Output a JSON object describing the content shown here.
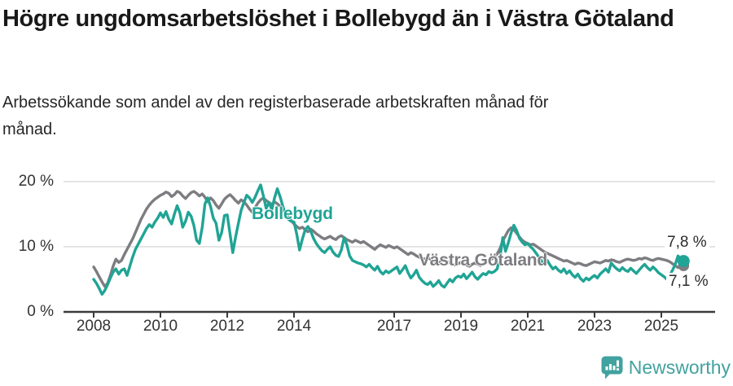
{
  "title": "Högre ungdomsarbetslöshet i Bollebygd än i Västra Götaland",
  "subtitle": "Arbetssökande som andel av den registerbaserade arbetskraften månad för månad.",
  "footer": {
    "brand": "Newsworthy"
  },
  "colors": {
    "bollebygd": "#20a495",
    "vastra_gotaland": "#7d7d81",
    "grid": "#dcdcdc",
    "axis": "#3a3a3a",
    "title_text": "#191919",
    "tick_text": "#333333",
    "brand": "#42a2a0"
  },
  "chart_data": {
    "type": "line",
    "unit": "%",
    "x_unit": "monthly, Jan 2008 – Sep 2025",
    "x_ticks": [
      2008,
      2010,
      2012,
      2014,
      2017,
      2019,
      2021,
      2023,
      2025
    ],
    "y_ticks": {
      "values": [
        0,
        10,
        20
      ],
      "labels": [
        "0 %",
        "10 %",
        "20 %"
      ]
    },
    "ylim": [
      0,
      21.5
    ],
    "grid": "horizontal",
    "legend": "inline-labels",
    "series": [
      {
        "name": "Bollebygd",
        "color": "#20a495",
        "end_value": 7.8,
        "end_label": "7,8 %",
        "values": [
          5.0,
          4.4,
          3.6,
          2.7,
          3.3,
          4.2,
          5.2,
          6.1,
          6.6,
          5.8,
          6.4,
          6.6,
          5.6,
          7.0,
          8.4,
          9.6,
          10.4,
          11.2,
          12.0,
          12.8,
          13.4,
          13.0,
          13.8,
          14.4,
          15.2,
          14.5,
          15.4,
          14.2,
          13.5,
          15.0,
          16.3,
          15.2,
          13.0,
          13.9,
          15.3,
          14.7,
          13.3,
          11.0,
          10.5,
          13.0,
          16.6,
          17.5,
          16.2,
          14.4,
          13.6,
          11.0,
          12.2,
          14.8,
          14.9,
          12.0,
          9.1,
          11.5,
          13.6,
          15.6,
          16.8,
          17.9,
          17.5,
          16.8,
          17.6,
          18.6,
          19.5,
          17.8,
          15.9,
          16.8,
          15.7,
          17.5,
          18.9,
          17.7,
          16.2,
          14.8,
          14.2,
          13.9,
          13.8,
          11.9,
          9.5,
          11.2,
          12.6,
          13.1,
          12.4,
          11.3,
          10.5,
          9.9,
          9.4,
          9.1,
          9.6,
          10.0,
          9.2,
          8.7,
          8.5,
          9.5,
          11.4,
          10.3,
          8.6,
          7.9,
          7.7,
          7.5,
          7.4,
          7.2,
          6.9,
          7.3,
          6.8,
          6.4,
          7.0,
          6.2,
          5.8,
          6.3,
          6.0,
          6.3,
          6.6,
          6.9,
          5.9,
          6.5,
          7.1,
          6.0,
          5.2,
          5.7,
          6.4,
          5.3,
          4.8,
          4.4,
          4.2,
          4.6,
          3.9,
          4.3,
          4.8,
          4.1,
          3.8,
          4.4,
          5.0,
          4.6,
          5.2,
          5.5,
          5.3,
          5.8,
          5.1,
          5.6,
          6.1,
          5.4,
          5.0,
          5.5,
          5.9,
          5.7,
          6.2,
          6.0,
          6.2,
          6.6,
          8.3,
          11.4,
          9.3,
          10.6,
          12.1,
          13.3,
          12.5,
          11.3,
          10.7,
          10.3,
          10.5,
          10.0,
          9.6,
          9.0,
          8.4,
          7.8,
          7.5,
          7.9,
          7.2,
          6.6,
          6.9,
          6.4,
          6.1,
          6.6,
          5.9,
          6.3,
          5.7,
          5.3,
          5.8,
          5.1,
          4.7,
          5.2,
          4.9,
          5.3,
          5.6,
          5.2,
          5.8,
          6.2,
          6.6,
          6.1,
          7.5,
          7.0,
          6.6,
          6.3,
          6.8,
          6.4,
          6.2,
          6.7,
          6.3,
          5.9,
          6.4,
          6.9,
          7.3,
          6.8,
          6.4,
          6.9,
          6.5,
          6.0,
          5.7,
          5.4,
          5.0,
          5.6,
          6.4,
          7.3,
          8.6,
          8.1,
          7.8
        ]
      },
      {
        "name": "Västra Götaland",
        "color": "#7d7d81",
        "end_value": 7.1,
        "end_label": "7,1 %",
        "values": [
          6.9,
          6.2,
          5.4,
          4.6,
          3.9,
          4.4,
          5.6,
          7.0,
          8.1,
          7.6,
          7.9,
          8.8,
          9.6,
          10.4,
          11.2,
          12.2,
          13.2,
          14.2,
          15.0,
          15.8,
          16.4,
          16.9,
          17.3,
          17.6,
          17.9,
          18.1,
          18.4,
          18.2,
          17.7,
          18.0,
          18.5,
          18.3,
          17.8,
          17.4,
          17.9,
          18.3,
          18.5,
          18.2,
          17.8,
          18.1,
          17.6,
          16.9,
          17.5,
          17.1,
          16.4,
          15.9,
          16.6,
          17.3,
          17.7,
          18.0,
          17.6,
          17.1,
          16.7,
          17.2,
          16.9,
          16.4,
          15.8,
          15.3,
          16.0,
          16.7,
          17.2,
          17.5,
          17.1,
          16.8,
          16.5,
          16.9,
          16.6,
          16.2,
          15.7,
          15.1,
          14.5,
          14.0,
          13.5,
          13.1,
          12.8,
          13.0,
          12.6,
          12.3,
          12.7,
          12.4,
          12.0,
          11.7,
          11.4,
          11.2,
          11.4,
          11.6,
          11.3,
          11.1,
          11.5,
          11.7,
          11.4,
          11.1,
          10.9,
          10.7,
          11.0,
          10.8,
          10.6,
          10.8,
          10.5,
          10.2,
          9.9,
          9.6,
          10.0,
          10.3,
          10.1,
          9.9,
          10.2,
          10.0,
          9.8,
          10.0,
          9.7,
          9.4,
          9.1,
          8.8,
          9.1,
          8.9,
          8.6,
          8.4,
          8.2,
          8.1,
          8.3,
          8.1,
          7.9,
          7.7,
          7.5,
          7.8,
          8.0,
          7.7,
          7.5,
          7.3,
          7.2,
          7.4,
          7.6,
          7.4,
          7.2,
          7.0,
          7.3,
          7.5,
          7.3,
          7.1,
          7.4,
          7.6,
          7.8,
          8.1,
          8.5,
          8.9,
          9.7,
          10.9,
          11.7,
          12.5,
          12.9,
          12.6,
          12.1,
          11.5,
          11.0,
          10.7,
          10.5,
          10.3,
          10.4,
          10.1,
          9.8,
          9.5,
          9.2,
          9.0,
          8.8,
          8.6,
          8.4,
          8.2,
          8.0,
          7.8,
          7.9,
          7.7,
          7.5,
          7.3,
          7.5,
          7.4,
          7.2,
          7.1,
          7.3,
          7.5,
          7.7,
          7.6,
          7.5,
          7.7,
          7.9,
          7.8,
          8.0,
          7.9,
          7.7,
          7.6,
          7.8,
          8.0,
          8.1,
          8.0,
          7.9,
          8.0,
          8.2,
          8.1,
          8.3,
          8.2,
          8.0,
          7.9,
          8.1,
          8.2,
          8.1,
          8.0,
          7.9,
          7.7,
          7.4,
          7.1,
          6.8,
          7.0,
          7.1
        ]
      }
    ]
  }
}
